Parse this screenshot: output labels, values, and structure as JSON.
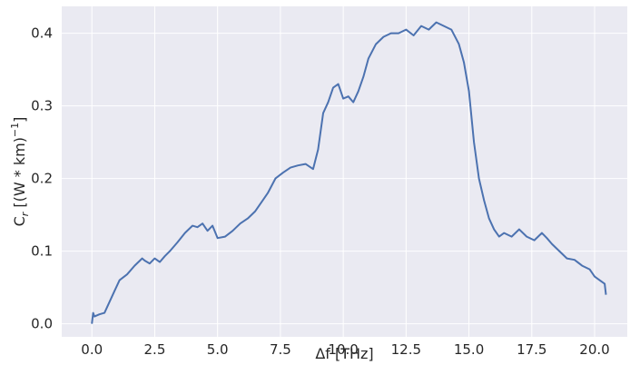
{
  "chart_data": {
    "type": "line",
    "title": "",
    "xlabel": "Δf [THz]",
    "ylabel_main": "C",
    "ylabel_sub": "r",
    "ylabel_rest": " [(W * km)",
    "ylabel_sup": "−1",
    "ylabel_close": "]",
    "xlim": [
      -1.2,
      21.3
    ],
    "ylim": [
      -0.018,
      0.437
    ],
    "xticks": [
      0.0,
      2.5,
      5.0,
      7.5,
      10.0,
      12.5,
      15.0,
      17.5,
      20.0
    ],
    "xtick_labels": [
      "0.0",
      "2.5",
      "5.0",
      "7.5",
      "10.0",
      "12.5",
      "15.0",
      "17.5",
      "20.0"
    ],
    "yticks": [
      0.0,
      0.1,
      0.2,
      0.3,
      0.4
    ],
    "ytick_labels": [
      "0.0",
      "0.1",
      "0.2",
      "0.3",
      "0.4"
    ],
    "grid": true,
    "background_color": "#eaeaf2",
    "grid_color": "#ffffff",
    "series": [
      {
        "color": "#4c72b0",
        "x": [
          0.0,
          0.05,
          0.1,
          0.3,
          0.5,
          0.7,
          0.9,
          1.1,
          1.4,
          1.7,
          2.0,
          2.1,
          2.3,
          2.5,
          2.7,
          2.9,
          3.1,
          3.4,
          3.7,
          4.0,
          4.2,
          4.4,
          4.6,
          4.8,
          5.0,
          5.3,
          5.6,
          5.9,
          6.2,
          6.5,
          6.8,
          7.0,
          7.3,
          7.6,
          7.9,
          8.2,
          8.5,
          8.8,
          9.0,
          9.2,
          9.4,
          9.6,
          9.8,
          10.0,
          10.2,
          10.4,
          10.6,
          10.8,
          11.0,
          11.3,
          11.6,
          11.9,
          12.2,
          12.5,
          12.8,
          13.1,
          13.4,
          13.7,
          14.0,
          14.3,
          14.6,
          14.8,
          15.0,
          15.2,
          15.4,
          15.6,
          15.8,
          16.0,
          16.2,
          16.4,
          16.7,
          17.0,
          17.3,
          17.6,
          17.9,
          18.1,
          18.3,
          18.6,
          18.9,
          19.2,
          19.5,
          19.8,
          20.0,
          20.2,
          20.4,
          20.45
        ],
        "y": [
          0.0,
          0.015,
          0.01,
          0.013,
          0.015,
          0.03,
          0.045,
          0.06,
          0.068,
          0.08,
          0.09,
          0.087,
          0.083,
          0.09,
          0.085,
          0.093,
          0.1,
          0.112,
          0.125,
          0.135,
          0.133,
          0.138,
          0.128,
          0.135,
          0.118,
          0.12,
          0.128,
          0.138,
          0.145,
          0.155,
          0.17,
          0.18,
          0.2,
          0.208,
          0.215,
          0.218,
          0.22,
          0.213,
          0.24,
          0.29,
          0.305,
          0.325,
          0.33,
          0.31,
          0.313,
          0.305,
          0.32,
          0.34,
          0.365,
          0.385,
          0.395,
          0.4,
          0.4,
          0.405,
          0.397,
          0.41,
          0.405,
          0.415,
          0.41,
          0.405,
          0.385,
          0.36,
          0.32,
          0.25,
          0.2,
          0.17,
          0.145,
          0.13,
          0.12,
          0.125,
          0.12,
          0.13,
          0.12,
          0.115,
          0.125,
          0.118,
          0.11,
          0.1,
          0.09,
          0.088,
          0.08,
          0.075,
          0.065,
          0.06,
          0.055,
          0.04
        ]
      }
    ]
  }
}
